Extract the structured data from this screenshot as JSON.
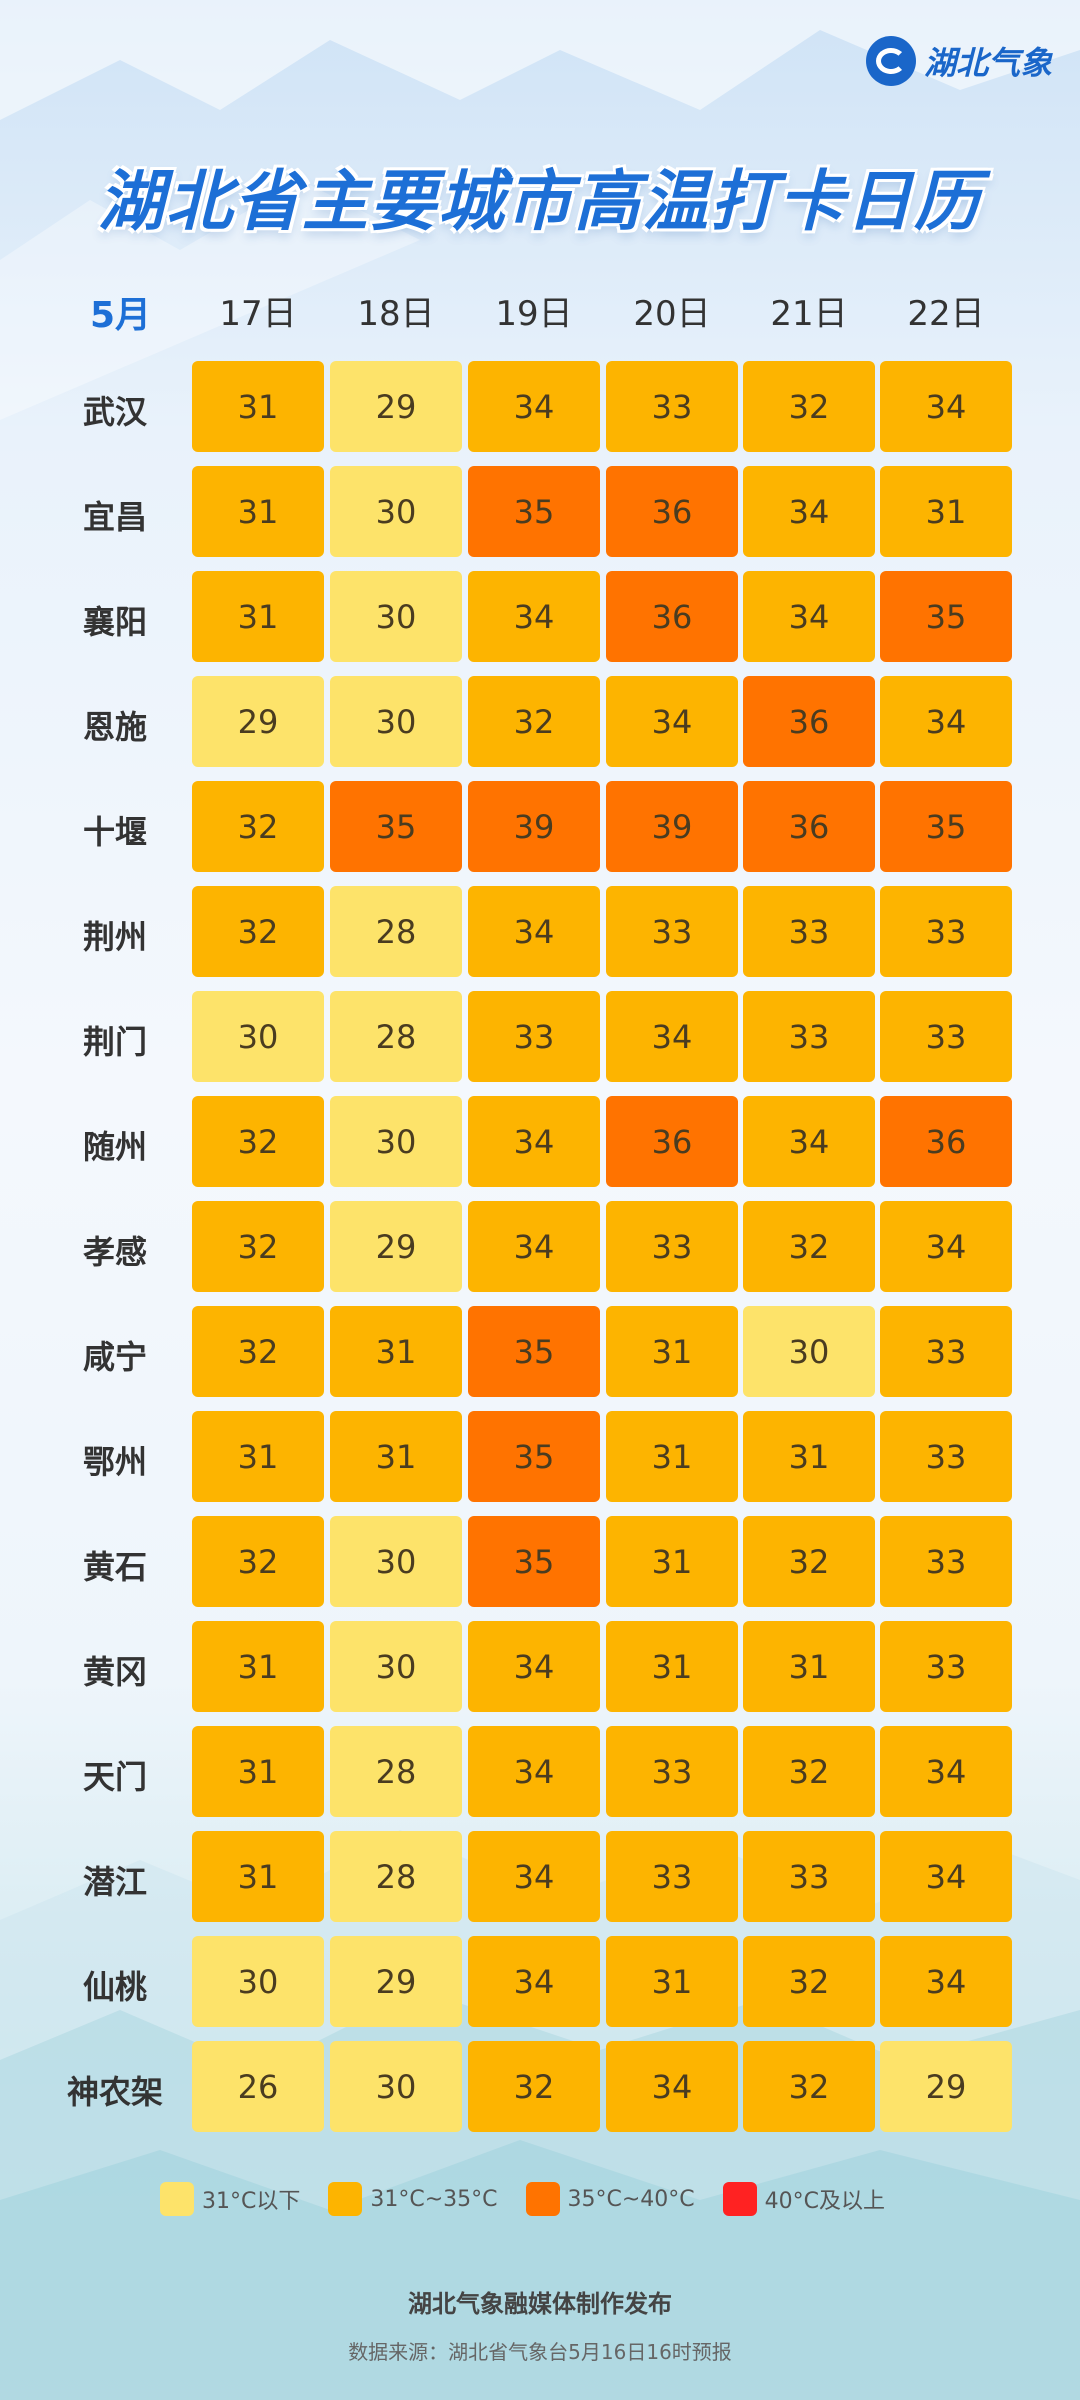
{
  "brand": {
    "logo_text": "湖北气象",
    "logo_icon": "hubei-weather-logo-icon"
  },
  "title": "湖北省主要城市高温打卡日历",
  "month_label": "5月",
  "colors": {
    "below_31": "#fde36a",
    "31_35": "#fdb400",
    "35_40": "#ff7300",
    "40_up": "#ff2222",
    "title": "#1d6fd6"
  },
  "legend": [
    {
      "label": "31°C以下",
      "color": "#fde36a"
    },
    {
      "label": "31°C~35°C",
      "color": "#fdb400"
    },
    {
      "label": "35°C~40°C",
      "color": "#ff7300"
    },
    {
      "label": "40°C及以上",
      "color": "#ff2222"
    }
  ],
  "chart_data": {
    "type": "heatmap",
    "title": "湖北省主要城市高温打卡日历",
    "x": [
      "17日",
      "18日",
      "19日",
      "20日",
      "21日",
      "22日"
    ],
    "y": [
      "武汉",
      "宜昌",
      "襄阳",
      "恩施",
      "十堰",
      "荆州",
      "荆门",
      "随州",
      "孝感",
      "咸宁",
      "鄂州",
      "黄石",
      "黄冈",
      "天门",
      "潜江",
      "仙桃",
      "神农架"
    ],
    "values": [
      [
        31,
        29,
        34,
        33,
        32,
        34
      ],
      [
        31,
        30,
        35,
        36,
        34,
        31
      ],
      [
        31,
        30,
        34,
        36,
        34,
        35
      ],
      [
        29,
        30,
        32,
        34,
        36,
        34
      ],
      [
        32,
        35,
        39,
        39,
        36,
        35
      ],
      [
        32,
        28,
        34,
        33,
        33,
        33
      ],
      [
        30,
        28,
        33,
        34,
        33,
        33
      ],
      [
        32,
        30,
        34,
        36,
        34,
        36
      ],
      [
        32,
        29,
        34,
        33,
        32,
        34
      ],
      [
        32,
        31,
        35,
        31,
        30,
        33
      ],
      [
        31,
        31,
        35,
        31,
        31,
        33
      ],
      [
        32,
        30,
        35,
        31,
        32,
        33
      ],
      [
        31,
        30,
        34,
        31,
        31,
        33
      ],
      [
        31,
        28,
        34,
        33,
        32,
        34
      ],
      [
        31,
        28,
        34,
        33,
        33,
        34
      ],
      [
        30,
        29,
        34,
        31,
        32,
        34
      ],
      [
        26,
        30,
        32,
        34,
        32,
        29
      ]
    ],
    "levels": [
      [
        "31-35",
        "below-31",
        "31-35",
        "31-35",
        "31-35",
        "31-35"
      ],
      [
        "31-35",
        "below-31",
        "35-40",
        "35-40",
        "31-35",
        "31-35"
      ],
      [
        "31-35",
        "below-31",
        "31-35",
        "35-40",
        "31-35",
        "35-40"
      ],
      [
        "below-31",
        "below-31",
        "31-35",
        "31-35",
        "35-40",
        "31-35"
      ],
      [
        "31-35",
        "35-40",
        "35-40",
        "35-40",
        "35-40",
        "35-40"
      ],
      [
        "31-35",
        "below-31",
        "31-35",
        "31-35",
        "31-35",
        "31-35"
      ],
      [
        "below-31",
        "below-31",
        "31-35",
        "31-35",
        "31-35",
        "31-35"
      ],
      [
        "31-35",
        "below-31",
        "31-35",
        "35-40",
        "31-35",
        "35-40"
      ],
      [
        "31-35",
        "below-31",
        "31-35",
        "31-35",
        "31-35",
        "31-35"
      ],
      [
        "31-35",
        "31-35",
        "35-40",
        "31-35",
        "below-31",
        "31-35"
      ],
      [
        "31-35",
        "31-35",
        "35-40",
        "31-35",
        "31-35",
        "31-35"
      ],
      [
        "31-35",
        "below-31",
        "35-40",
        "31-35",
        "31-35",
        "31-35"
      ],
      [
        "31-35",
        "below-31",
        "31-35",
        "31-35",
        "31-35",
        "31-35"
      ],
      [
        "31-35",
        "below-31",
        "31-35",
        "31-35",
        "31-35",
        "31-35"
      ],
      [
        "31-35",
        "below-31",
        "31-35",
        "31-35",
        "31-35",
        "31-35"
      ],
      [
        "below-31",
        "below-31",
        "31-35",
        "31-35",
        "31-35",
        "31-35"
      ],
      [
        "below-31",
        "below-31",
        "31-35",
        "31-35",
        "31-35",
        "below-31"
      ]
    ]
  },
  "footer": {
    "publisher": "湖北气象融媒体制作发布",
    "source": "数据来源：湖北省气象台5月16日16时预报"
  }
}
